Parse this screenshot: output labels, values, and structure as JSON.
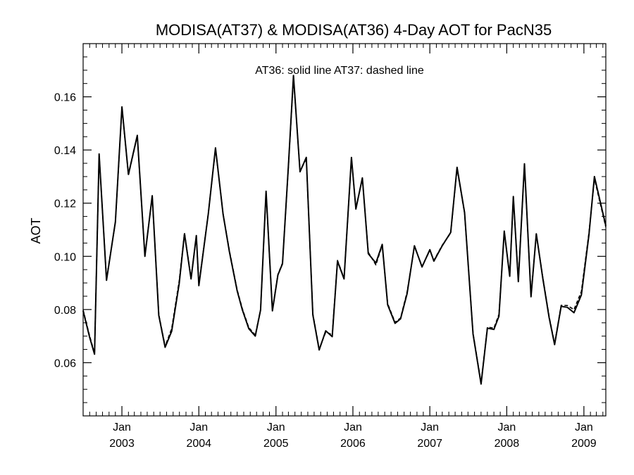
{
  "chart_data": {
    "type": "line",
    "title": "MODISA(AT37) & MODISA(AT36) 4-Day AOT for PacN35",
    "annotation": "AT36: solid line   AT37: dashed line",
    "ylabel": "AOT",
    "xlabel": "",
    "xlim": [
      "2002-07-01",
      "2009-04-15"
    ],
    "ylim": [
      0.04,
      0.18
    ],
    "y_ticks": [
      0.06,
      0.08,
      0.1,
      0.12,
      0.14,
      0.16
    ],
    "y_tick_labels": [
      "0.06",
      "0.08",
      "0.10",
      "0.12",
      "0.14",
      "0.16"
    ],
    "x_ticks": [
      {
        "date": "2003-01-01",
        "month": "Jan",
        "year": "2003"
      },
      {
        "date": "2004-01-01",
        "month": "Jan",
        "year": "2004"
      },
      {
        "date": "2005-01-01",
        "month": "Jan",
        "year": "2005"
      },
      {
        "date": "2006-01-01",
        "month": "Jan",
        "year": "2006"
      },
      {
        "date": "2007-01-01",
        "month": "Jan",
        "year": "2007"
      },
      {
        "date": "2008-01-01",
        "month": "Jan",
        "year": "2008"
      },
      {
        "date": "2009-01-01",
        "month": "Jan",
        "year": "2009"
      }
    ],
    "x_minor_tick_dates": [
      "2002-08-01",
      "2002-09-01",
      "2002-10-01",
      "2002-11-01",
      "2002-12-01",
      "2003-02-01",
      "2003-03-01",
      "2003-04-01",
      "2003-05-01",
      "2003-06-01",
      "2003-07-01",
      "2003-08-01",
      "2003-09-01",
      "2003-10-01",
      "2003-11-01",
      "2003-12-01",
      "2004-02-01",
      "2004-03-01",
      "2004-04-01",
      "2004-05-01",
      "2004-06-01",
      "2004-07-01",
      "2004-08-01",
      "2004-09-01",
      "2004-10-01",
      "2004-11-01",
      "2004-12-01",
      "2005-02-01",
      "2005-03-01",
      "2005-04-01",
      "2005-05-01",
      "2005-06-01",
      "2005-07-01",
      "2005-08-01",
      "2005-09-01",
      "2005-10-01",
      "2005-11-01",
      "2005-12-01",
      "2006-02-01",
      "2006-03-01",
      "2006-04-01",
      "2006-05-01",
      "2006-06-01",
      "2006-07-01",
      "2006-08-01",
      "2006-09-01",
      "2006-10-01",
      "2006-11-01",
      "2006-12-01",
      "2007-02-01",
      "2007-03-01",
      "2007-04-01",
      "2007-05-01",
      "2007-06-01",
      "2007-07-01",
      "2007-08-01",
      "2007-09-01",
      "2007-10-01",
      "2007-11-01",
      "2007-12-01",
      "2008-02-01",
      "2008-03-01",
      "2008-04-01",
      "2008-05-01",
      "2008-06-01",
      "2008-07-01",
      "2008-08-01",
      "2008-09-01",
      "2008-10-01",
      "2008-11-01",
      "2008-12-01",
      "2009-02-01",
      "2009-03-01",
      "2009-04-01"
    ],
    "y_minor_ticks": [
      0.045,
      0.05,
      0.055,
      0.065,
      0.07,
      0.075,
      0.085,
      0.09,
      0.095,
      0.105,
      0.11,
      0.115,
      0.125,
      0.13,
      0.135,
      0.145,
      0.15,
      0.155,
      0.165,
      0.17,
      0.175
    ],
    "grid": false,
    "series": [
      {
        "name": "AT36",
        "style": "solid",
        "color": "#000000",
        "points": [
          [
            "2002-07-01",
            0.0795
          ],
          [
            "2002-08-01",
            0.0695
          ],
          [
            "2002-08-24",
            0.0632
          ],
          [
            "2002-09-15",
            0.1385
          ],
          [
            "2002-10-20",
            0.091
          ],
          [
            "2002-12-01",
            0.113
          ],
          [
            "2003-01-01",
            0.1562
          ],
          [
            "2003-02-01",
            0.1308
          ],
          [
            "2003-03-15",
            0.1455
          ],
          [
            "2003-04-20",
            0.1
          ],
          [
            "2003-05-25",
            0.1228
          ],
          [
            "2003-06-25",
            0.0778
          ],
          [
            "2003-07-25",
            0.0658
          ],
          [
            "2003-08-25",
            0.0718
          ],
          [
            "2003-09-30",
            0.0898
          ],
          [
            "2003-10-25",
            0.1085
          ],
          [
            "2003-11-25",
            0.0915
          ],
          [
            "2003-12-20",
            0.1078
          ],
          [
            "2004-01-01",
            0.089
          ],
          [
            "2004-02-15",
            0.116
          ],
          [
            "2004-03-20",
            0.1408
          ],
          [
            "2004-04-25",
            0.1158
          ],
          [
            "2004-05-25",
            0.1018
          ],
          [
            "2004-07-01",
            0.087
          ],
          [
            "2004-07-25",
            0.08
          ],
          [
            "2004-08-25",
            0.0728
          ],
          [
            "2004-09-25",
            0.07
          ],
          [
            "2004-10-20",
            0.0798
          ],
          [
            "2004-11-15",
            0.1245
          ],
          [
            "2004-12-15",
            0.0795
          ],
          [
            "2005-01-10",
            0.093
          ],
          [
            "2005-02-01",
            0.0972
          ],
          [
            "2005-03-01",
            0.134
          ],
          [
            "2005-03-25",
            0.168
          ],
          [
            "2005-04-25",
            0.1318
          ],
          [
            "2005-05-25",
            0.1372
          ],
          [
            "2005-06-25",
            0.078
          ],
          [
            "2005-07-25",
            0.0648
          ],
          [
            "2005-08-25",
            0.072
          ],
          [
            "2005-09-25",
            0.0698
          ],
          [
            "2005-10-20",
            0.0982
          ],
          [
            "2005-11-20",
            0.0915
          ],
          [
            "2005-12-25",
            0.1372
          ],
          [
            "2006-01-15",
            0.1178
          ],
          [
            "2006-02-15",
            0.1295
          ],
          [
            "2006-03-15",
            0.101
          ],
          [
            "2006-04-20",
            0.0975
          ],
          [
            "2006-05-20",
            0.1045
          ],
          [
            "2006-06-15",
            0.0818
          ],
          [
            "2006-07-20",
            0.0748
          ],
          [
            "2006-08-15",
            0.0765
          ],
          [
            "2006-09-15",
            0.086
          ],
          [
            "2006-10-20",
            0.104
          ],
          [
            "2006-11-25",
            0.096
          ],
          [
            "2007-01-01",
            0.1025
          ],
          [
            "2007-01-20",
            0.0982
          ],
          [
            "2007-03-01",
            0.104
          ],
          [
            "2007-04-10",
            0.109
          ],
          [
            "2007-05-10",
            0.1335
          ],
          [
            "2007-06-15",
            0.1165
          ],
          [
            "2007-07-25",
            0.0708
          ],
          [
            "2007-09-01",
            0.052
          ],
          [
            "2007-10-01",
            0.073
          ],
          [
            "2007-11-01",
            0.0725
          ],
          [
            "2007-11-25",
            0.0775
          ],
          [
            "2007-12-20",
            0.1095
          ],
          [
            "2008-01-15",
            0.0925
          ],
          [
            "2008-02-01",
            0.1225
          ],
          [
            "2008-02-25",
            0.0905
          ],
          [
            "2008-03-25",
            0.1348
          ],
          [
            "2008-04-25",
            0.0848
          ],
          [
            "2008-05-20",
            0.1085
          ],
          [
            "2008-06-20",
            0.0918
          ],
          [
            "2008-07-20",
            0.077
          ],
          [
            "2008-08-15",
            0.0668
          ],
          [
            "2008-09-15",
            0.0812
          ],
          [
            "2008-10-15",
            0.0808
          ],
          [
            "2008-11-15",
            0.0788
          ],
          [
            "2008-12-20",
            0.0855
          ],
          [
            "2009-01-25",
            0.1082
          ],
          [
            "2009-02-20",
            0.13
          ],
          [
            "2009-04-15",
            0.1115
          ]
        ]
      },
      {
        "name": "AT37",
        "style": "dashed",
        "color": "#000000",
        "points": [
          [
            "2002-07-01",
            0.0798
          ],
          [
            "2002-08-01",
            0.07
          ],
          [
            "2002-08-24",
            0.0636
          ],
          [
            "2002-09-15",
            0.1382
          ],
          [
            "2002-10-20",
            0.0914
          ],
          [
            "2002-12-01",
            0.1128
          ],
          [
            "2003-01-01",
            0.1558
          ],
          [
            "2003-02-01",
            0.1305
          ],
          [
            "2003-03-15",
            0.1452
          ],
          [
            "2003-04-20",
            0.1004
          ],
          [
            "2003-05-25",
            0.1225
          ],
          [
            "2003-06-25",
            0.0782
          ],
          [
            "2003-07-25",
            0.0662
          ],
          [
            "2003-08-25",
            0.0728
          ],
          [
            "2003-09-30",
            0.0908
          ],
          [
            "2003-10-25",
            0.1088
          ],
          [
            "2003-11-25",
            0.0918
          ],
          [
            "2003-12-20",
            0.1075
          ],
          [
            "2004-01-01",
            0.0894
          ],
          [
            "2004-02-15",
            0.1162
          ],
          [
            "2004-03-20",
            0.1405
          ],
          [
            "2004-04-25",
            0.116
          ],
          [
            "2004-05-25",
            0.1022
          ],
          [
            "2004-07-01",
            0.0874
          ],
          [
            "2004-07-25",
            0.0804
          ],
          [
            "2004-08-25",
            0.0732
          ],
          [
            "2004-09-25",
            0.0704
          ],
          [
            "2004-10-20",
            0.08
          ],
          [
            "2004-11-15",
            0.124
          ],
          [
            "2004-12-15",
            0.0798
          ],
          [
            "2005-01-10",
            0.0932
          ],
          [
            "2005-02-01",
            0.0975
          ],
          [
            "2005-03-01",
            0.1336
          ],
          [
            "2005-03-25",
            0.1674
          ],
          [
            "2005-04-25",
            0.1322
          ],
          [
            "2005-05-25",
            0.1366
          ],
          [
            "2005-06-25",
            0.0784
          ],
          [
            "2005-07-25",
            0.0652
          ],
          [
            "2005-08-25",
            0.0715
          ],
          [
            "2005-09-25",
            0.0706
          ],
          [
            "2005-10-20",
            0.0985
          ],
          [
            "2005-11-20",
            0.0918
          ],
          [
            "2005-12-25",
            0.1368
          ],
          [
            "2006-01-15",
            0.1182
          ],
          [
            "2006-02-15",
            0.1292
          ],
          [
            "2006-03-15",
            0.1015
          ],
          [
            "2006-04-20",
            0.0968
          ],
          [
            "2006-05-20",
            0.1042
          ],
          [
            "2006-06-15",
            0.0822
          ],
          [
            "2006-07-20",
            0.0752
          ],
          [
            "2006-08-15",
            0.0768
          ],
          [
            "2006-09-15",
            0.0866
          ],
          [
            "2006-10-20",
            0.1036
          ],
          [
            "2006-11-25",
            0.0963
          ],
          [
            "2007-01-01",
            0.1022
          ],
          [
            "2007-01-20",
            0.0985
          ],
          [
            "2007-03-01",
            0.1042
          ],
          [
            "2007-04-10",
            0.1088
          ],
          [
            "2007-05-10",
            0.133
          ],
          [
            "2007-06-15",
            0.1162
          ],
          [
            "2007-07-25",
            0.0712
          ],
          [
            "2007-09-01",
            0.0524
          ],
          [
            "2007-10-01",
            0.0734
          ],
          [
            "2007-11-01",
            0.073
          ],
          [
            "2007-11-25",
            0.0782
          ],
          [
            "2007-12-20",
            0.1092
          ],
          [
            "2008-01-15",
            0.0928
          ],
          [
            "2008-02-01",
            0.122
          ],
          [
            "2008-02-25",
            0.091
          ],
          [
            "2008-03-25",
            0.1342
          ],
          [
            "2008-04-25",
            0.0852
          ],
          [
            "2008-05-20",
            0.1082
          ],
          [
            "2008-06-20",
            0.0922
          ],
          [
            "2008-07-20",
            0.0774
          ],
          [
            "2008-08-15",
            0.0672
          ],
          [
            "2008-09-15",
            0.0816
          ],
          [
            "2008-10-15",
            0.0815
          ],
          [
            "2008-11-15",
            0.08
          ],
          [
            "2008-12-20",
            0.0868
          ],
          [
            "2009-01-25",
            0.109
          ],
          [
            "2009-02-20",
            0.1292
          ],
          [
            "2009-04-15",
            0.111
          ]
        ]
      }
    ]
  }
}
